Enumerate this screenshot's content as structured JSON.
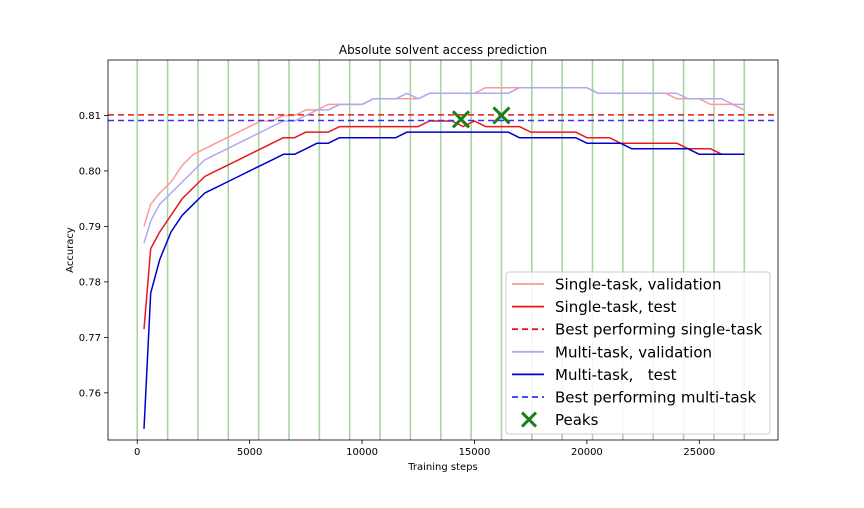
{
  "chart_data": {
    "type": "line",
    "title": "Absolute solvent access prediction",
    "xlabel": "Training steps",
    "ylabel": "Accuracy",
    "xlim": [
      -1300,
      28500
    ],
    "ylim": [
      0.7515,
      0.82
    ],
    "xticks": [
      0,
      5000,
      10000,
      15000,
      20000,
      25000
    ],
    "yticks": [
      0.76,
      0.77,
      0.78,
      0.79,
      0.8,
      0.81
    ],
    "ytick_labels": [
      "0.76",
      "0.77",
      "0.78",
      "0.79",
      "0.80",
      "0.81"
    ],
    "epoch_lines_x": [
      0,
      1350,
      2700,
      4050,
      5400,
      6750,
      8100,
      9450,
      10800,
      12150,
      13500,
      14850,
      16200,
      17550,
      18900,
      20250,
      21600,
      22950,
      24300,
      25650,
      27000
    ],
    "epoch_line_color": "#a8d5a2",
    "grid": false,
    "legend_position": "lower-right",
    "series": [
      {
        "name": "Single-task, validation",
        "color": "#ff9999",
        "style": "solid",
        "x": [
          300,
          600,
          1000,
          1500,
          2000,
          2500,
          3000,
          3500,
          4000,
          4500,
          5000,
          5500,
          6000,
          6500,
          7000,
          7500,
          8000,
          8500,
          9000,
          9500,
          10000,
          10500,
          11000,
          11500,
          12000,
          12500,
          13000,
          13500,
          14000,
          14500,
          15000,
          15500,
          16000,
          16500,
          17000,
          17500,
          18000,
          18500,
          19000,
          19500,
          20000,
          20500,
          21000,
          21500,
          22000,
          22500,
          23000,
          23500,
          24000,
          24500,
          25000,
          25500,
          26000,
          26500,
          27000
        ],
        "y": [
          0.79,
          0.794,
          0.796,
          0.798,
          0.801,
          0.803,
          0.804,
          0.805,
          0.806,
          0.807,
          0.808,
          0.809,
          0.809,
          0.81,
          0.81,
          0.811,
          0.811,
          0.812,
          0.812,
          0.812,
          0.812,
          0.813,
          0.813,
          0.813,
          0.813,
          0.813,
          0.814,
          0.814,
          0.814,
          0.814,
          0.814,
          0.815,
          0.815,
          0.815,
          0.815,
          0.815,
          0.815,
          0.815,
          0.815,
          0.815,
          0.815,
          0.814,
          0.814,
          0.814,
          0.814,
          0.814,
          0.814,
          0.814,
          0.813,
          0.813,
          0.813,
          0.812,
          0.812,
          0.812,
          0.811
        ]
      },
      {
        "name": "Single-task, test",
        "color": "#e41a1c",
        "style": "solid",
        "x": [
          300,
          600,
          1000,
          1500,
          2000,
          2500,
          3000,
          3500,
          4000,
          4500,
          5000,
          5500,
          6000,
          6500,
          7000,
          7500,
          8000,
          8500,
          9000,
          9500,
          10000,
          10500,
          11000,
          11500,
          12000,
          12500,
          13000,
          13500,
          14000,
          14500,
          15000,
          15500,
          16000,
          16500,
          17000,
          17500,
          18000,
          18500,
          19000,
          19500,
          20000,
          20500,
          21000,
          21500,
          22000,
          22500,
          23000,
          23500,
          24000,
          24500,
          25000,
          25500,
          26000,
          26500,
          27000
        ],
        "y": [
          0.7715,
          0.786,
          0.789,
          0.792,
          0.795,
          0.797,
          0.799,
          0.8,
          0.801,
          0.802,
          0.803,
          0.804,
          0.805,
          0.806,
          0.806,
          0.807,
          0.807,
          0.807,
          0.808,
          0.808,
          0.808,
          0.808,
          0.808,
          0.808,
          0.808,
          0.808,
          0.809,
          0.809,
          0.809,
          0.808,
          0.809,
          0.808,
          0.808,
          0.808,
          0.808,
          0.807,
          0.807,
          0.807,
          0.807,
          0.807,
          0.806,
          0.806,
          0.806,
          0.805,
          0.805,
          0.805,
          0.805,
          0.805,
          0.805,
          0.804,
          0.804,
          0.804,
          0.803,
          0.803,
          0.803
        ]
      },
      {
        "name": "Best performing single-task",
        "color": "#e41a1c",
        "style": "dashed",
        "y_constant": 0.8101
      },
      {
        "name": "Multi-task, validation",
        "color": "#b0a8f0",
        "style": "solid",
        "x": [
          300,
          600,
          1000,
          1500,
          2000,
          2500,
          3000,
          3500,
          4000,
          4500,
          5000,
          5500,
          6000,
          6500,
          7000,
          7500,
          8000,
          8500,
          9000,
          9500,
          10000,
          10500,
          11000,
          11500,
          12000,
          12500,
          13000,
          13500,
          14000,
          14500,
          15000,
          15500,
          16000,
          16500,
          17000,
          17500,
          18000,
          18500,
          19000,
          19500,
          20000,
          20500,
          21000,
          21500,
          22000,
          22500,
          23000,
          23500,
          24000,
          24500,
          25000,
          25500,
          26000,
          26500,
          27000
        ],
        "y": [
          0.787,
          0.791,
          0.794,
          0.796,
          0.798,
          0.8,
          0.802,
          0.803,
          0.804,
          0.805,
          0.806,
          0.807,
          0.808,
          0.809,
          0.809,
          0.81,
          0.811,
          0.811,
          0.812,
          0.812,
          0.812,
          0.813,
          0.813,
          0.813,
          0.814,
          0.813,
          0.814,
          0.814,
          0.814,
          0.814,
          0.814,
          0.814,
          0.814,
          0.814,
          0.815,
          0.815,
          0.815,
          0.815,
          0.815,
          0.815,
          0.815,
          0.814,
          0.814,
          0.814,
          0.814,
          0.814,
          0.814,
          0.814,
          0.814,
          0.813,
          0.813,
          0.813,
          0.813,
          0.812,
          0.812
        ]
      },
      {
        "name": "Multi-task,   test",
        "color": "#0000cc",
        "style": "solid",
        "x": [
          300,
          600,
          1000,
          1500,
          2000,
          2500,
          3000,
          3500,
          4000,
          4500,
          5000,
          5500,
          6000,
          6500,
          7000,
          7500,
          8000,
          8500,
          9000,
          9500,
          10000,
          10500,
          11000,
          11500,
          12000,
          12500,
          13000,
          13500,
          14000,
          14500,
          15000,
          15500,
          16000,
          16500,
          17000,
          17500,
          18000,
          18500,
          19000,
          19500,
          20000,
          20500,
          21000,
          21500,
          22000,
          22500,
          23000,
          23500,
          24000,
          24500,
          25000,
          25500,
          26000,
          26500,
          27000
        ],
        "y": [
          0.7535,
          0.778,
          0.784,
          0.789,
          0.792,
          0.794,
          0.796,
          0.797,
          0.798,
          0.799,
          0.8,
          0.801,
          0.802,
          0.803,
          0.803,
          0.804,
          0.805,
          0.805,
          0.806,
          0.806,
          0.806,
          0.806,
          0.806,
          0.806,
          0.807,
          0.807,
          0.807,
          0.807,
          0.807,
          0.807,
          0.807,
          0.807,
          0.807,
          0.807,
          0.806,
          0.806,
          0.806,
          0.806,
          0.806,
          0.806,
          0.805,
          0.805,
          0.805,
          0.805,
          0.804,
          0.804,
          0.804,
          0.804,
          0.804,
          0.804,
          0.803,
          0.803,
          0.803,
          0.803,
          0.803
        ]
      },
      {
        "name": "Best performing multi-task",
        "color": "#3333ff",
        "style": "dashed",
        "y_constant": 0.8091
      }
    ],
    "peaks": {
      "name": "Peaks",
      "color": "#1a7f1a",
      "marker": "x",
      "points": [
        {
          "x": 14400,
          "y": 0.8093
        },
        {
          "x": 16200,
          "y": 0.81
        }
      ]
    },
    "legend_order": [
      "Single-task, validation",
      "Single-task, test",
      "Best performing single-task",
      "Multi-task, validation",
      "Multi-task,   test",
      "Best performing multi-task",
      "Peaks"
    ]
  }
}
